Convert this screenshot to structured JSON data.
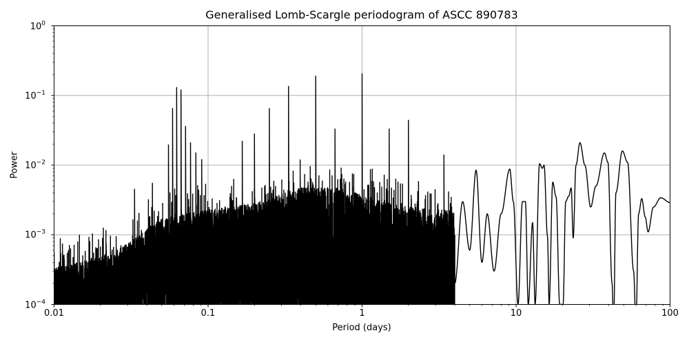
{
  "chart_data": {
    "type": "line",
    "title": "Generalised Lomb-Scargle periodogram of ASCC 890783",
    "xlabel": "Period (days)",
    "ylabel": "Power",
    "xscale": "log",
    "yscale": "log",
    "xlim": [
      0.01,
      100
    ],
    "ylim": [
      0.0001,
      1
    ],
    "grid": true,
    "line_color": "#000000",
    "grid_color": "#b0b0b0",
    "x_ticks": [
      {
        "value": 0.01,
        "label": "0.01"
      },
      {
        "value": 0.1,
        "label": "0.1"
      },
      {
        "value": 1,
        "label": "1"
      },
      {
        "value": 10,
        "label": "10"
      },
      {
        "value": 100,
        "label": "100"
      }
    ],
    "y_ticks": [
      {
        "value": 1,
        "base": "10",
        "exp": "0"
      },
      {
        "value": 0.1,
        "base": "10",
        "exp": "−1"
      },
      {
        "value": 0.01,
        "base": "10",
        "exp": "−2"
      },
      {
        "value": 0.001,
        "base": "10",
        "exp": "−3"
      },
      {
        "value": 0.0001,
        "base": "10",
        "exp": "−4"
      }
    ],
    "notable_peaks": [
      {
        "period": 0.0553,
        "power": 0.0195
      },
      {
        "period": 0.0588,
        "power": 0.065
      },
      {
        "period": 0.0625,
        "power": 0.13
      },
      {
        "period": 0.0667,
        "power": 0.12
      },
      {
        "period": 0.0714,
        "power": 0.036
      },
      {
        "period": 0.0769,
        "power": 0.021
      },
      {
        "period": 0.0833,
        "power": 0.015
      },
      {
        "period": 0.0909,
        "power": 0.012
      },
      {
        "period": 0.0435,
        "power": 0.0055
      },
      {
        "period": 0.0333,
        "power": 0.0045
      },
      {
        "period": 0.1667,
        "power": 0.022
      },
      {
        "period": 0.2,
        "power": 0.028
      },
      {
        "period": 0.25,
        "power": 0.065
      },
      {
        "period": 0.333,
        "power": 0.135
      },
      {
        "period": 0.5,
        "power": 0.19
      },
      {
        "period": 0.667,
        "power": 0.033
      },
      {
        "period": 1.0,
        "power": 0.205
      },
      {
        "period": 1.5,
        "power": 0.033
      },
      {
        "period": 2.0,
        "power": 0.044
      },
      {
        "period": 3.4,
        "power": 0.014
      },
      {
        "period": 5.5,
        "power": 0.0088
      },
      {
        "period": 9.1,
        "power": 0.0088
      },
      {
        "period": 14.5,
        "power": 0.0105
      },
      {
        "period": 17.5,
        "power": 0.0057
      },
      {
        "period": 22.5,
        "power": 0.0047
      },
      {
        "period": 26.0,
        "power": 0.021
      },
      {
        "period": 31.0,
        "power": 0.0025
      },
      {
        "period": 38.5,
        "power": 0.015
      },
      {
        "period": 50.0,
        "power": 0.016
      },
      {
        "period": 65.0,
        "power": 0.0033
      },
      {
        "period": 72.0,
        "power": 0.0011
      },
      {
        "period": 88.0,
        "power": 0.0034
      },
      {
        "period": 100.0,
        "power": 0.0029
      }
    ],
    "noise_floor": [
      {
        "period": 0.01,
        "power": 0.00018
      },
      {
        "period": 0.02,
        "power": 0.00025
      },
      {
        "period": 0.03,
        "power": 0.0004
      },
      {
        "period": 0.05,
        "power": 0.0009
      },
      {
        "period": 0.1,
        "power": 0.0012
      },
      {
        "period": 0.2,
        "power": 0.0015
      },
      {
        "period": 0.4,
        "power": 0.0025
      },
      {
        "period": 0.7,
        "power": 0.0025
      },
      {
        "period": 1.5,
        "power": 0.0015
      },
      {
        "period": 3.0,
        "power": 0.0012
      }
    ]
  }
}
